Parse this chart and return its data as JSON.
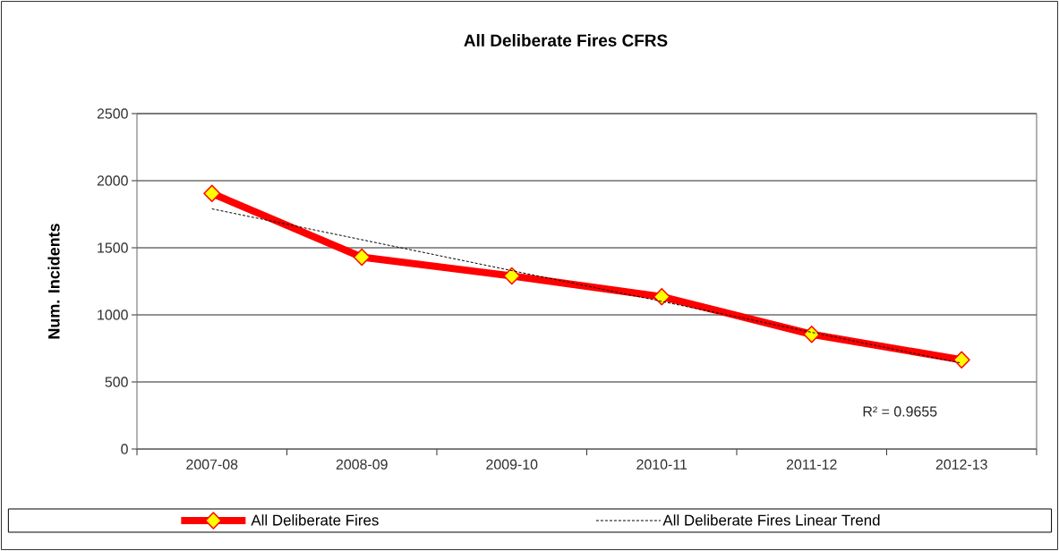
{
  "chart_data": {
    "type": "line",
    "title": "All Deliberate Fires CFRS",
    "ylabel": "Num. Incidents",
    "categories": [
      "2007-08",
      "2008-09",
      "2009-10",
      "2010-11",
      "2011-12",
      "2012-13"
    ],
    "series": [
      {
        "name": "All Deliberate Fires",
        "color": "#ff0000",
        "values": [
          1905,
          1430,
          1290,
          1135,
          855,
          665
        ]
      },
      {
        "name": "All Deliberate Fires Linear Trend",
        "type": "line",
        "color": "#000000",
        "values": [
          1790,
          1560,
          1330,
          1100,
          870,
          640
        ],
        "marker": "none",
        "line_style": "dashed"
      }
    ],
    "ylim": [
      0,
      2500
    ],
    "yticks": [
      0,
      500,
      1000,
      1500,
      2000,
      2500
    ],
    "grid": "y",
    "legend": "bottom",
    "marker": "diamond",
    "annotations": [
      "R² = 0.9655"
    ]
  }
}
